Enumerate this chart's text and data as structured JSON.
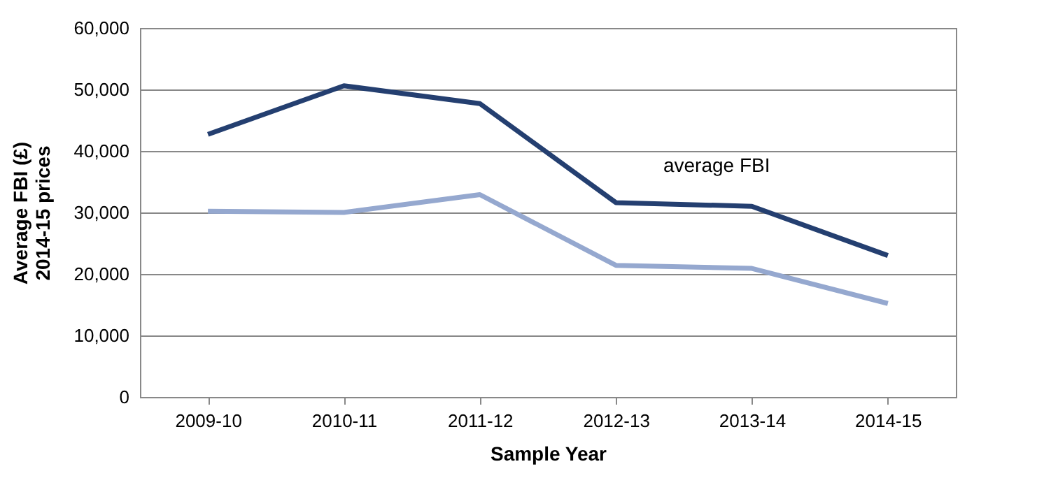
{
  "chart_data": {
    "type": "line",
    "xlabel": "Sample Year",
    "ylabel": "Average FBI (£)\n2014-15 prices",
    "categories": [
      "2009-10",
      "2010-11",
      "2011-12",
      "2012-13",
      "2013-14",
      "2014-15"
    ],
    "series": [
      {
        "name": "average FBI",
        "color": "#243f70",
        "values": [
          42700,
          50600,
          47700,
          31600,
          31000,
          23000
        ]
      },
      {
        "color": "#95a8cf",
        "values": [
          30200,
          30000,
          32900,
          21400,
          20900,
          15200
        ]
      }
    ],
    "ylim": [
      0,
      60000
    ],
    "yticks": [
      0,
      {
        "value": 10000,
        "label": "10,000"
      },
      {
        "value": 20000,
        "label": "20,000"
      },
      {
        "value": 30000,
        "label": "30,000"
      },
      {
        "value": 40000,
        "label": "40,000"
      },
      {
        "value": 50000,
        "label": "50,000"
      },
      {
        "value": 60000,
        "label": "60,000"
      }
    ],
    "grid": "y",
    "marker": "none",
    "line_style": "solid"
  }
}
